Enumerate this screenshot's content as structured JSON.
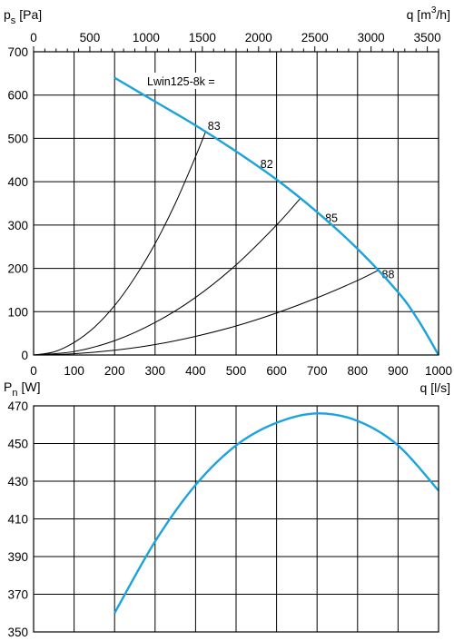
{
  "chart_data": [
    {
      "type": "line",
      "name": "pressure-chart",
      "ylabel_main": "p",
      "ylabel_sub": "s",
      "ylabel_unit": "[Pa]",
      "xlabel_top": "q [m",
      "xlabel_top_sup": "3",
      "xlabel_top_end": "/h]",
      "xlabel_bottom": "q [l/s]",
      "xlim": [
        0,
        1000
      ],
      "ylim": [
        0,
        700
      ],
      "x_ticks": [
        0,
        100,
        200,
        300,
        400,
        500,
        600,
        700,
        800,
        900,
        1000
      ],
      "x_tick_labels": [
        "0",
        "100",
        "200",
        "300",
        "400",
        "500",
        "600",
        "700",
        "800",
        "900",
        "1000"
      ],
      "y_ticks": [
        0,
        100,
        200,
        300,
        400,
        500,
        600,
        700
      ],
      "y_tick_labels": [
        "0",
        "100",
        "200",
        "300",
        "400",
        "500",
        "600",
        "700"
      ],
      "top_axis_max": 3600,
      "top_ticks": [
        0,
        500,
        1000,
        1500,
        2000,
        2500,
        3000,
        3500
      ],
      "top_tick_labels": [
        "0",
        "500",
        "1000",
        "1500",
        "2000",
        "2500",
        "3000",
        "3500"
      ],
      "grid": true,
      "fan_curve": {
        "label": "Lwin125-8k =",
        "color": "#1aa3dd",
        "x": [
          200,
          300,
          400,
          500,
          600,
          700,
          800,
          900,
          950,
          1000
        ],
        "y": [
          640,
          585,
          530,
          470,
          405,
          330,
          245,
          145,
          80,
          0
        ]
      },
      "system_curves": [
        {
          "label": "83",
          "x": [
            0,
            50,
            100,
            150,
            200,
            250,
            300,
            350,
            400,
            425
          ],
          "y": [
            0,
            7,
            29,
            64,
            114,
            179,
            257,
            350,
            458,
            516
          ],
          "label_x": 430,
          "label_y": 528
        },
        {
          "label": "82",
          "x": [
            0,
            100,
            200,
            300,
            400,
            500,
            600,
            660
          ],
          "y": [
            0,
            8,
            33,
            75,
            133,
            208,
            300,
            363
          ],
          "label_x": 560,
          "label_y": 440
        },
        {
          "label": "85",
          "x": [
            0,
            100,
            200,
            300,
            400,
            500,
            600,
            700,
            800,
            850
          ],
          "y": [
            0,
            3,
            11,
            24,
            43,
            67,
            97,
            132,
            172,
            195
          ],
          "label_x": 720,
          "label_y": 315
        },
        {
          "label": "88",
          "x": [],
          "y": [],
          "label_x": 860,
          "label_y": 185
        }
      ]
    },
    {
      "type": "line",
      "name": "power-chart",
      "ylabel_main": "P",
      "ylabel_sub": "n",
      "ylabel_unit": "[W]",
      "xlim": [
        0,
        1000
      ],
      "ylim": [
        350,
        470
      ],
      "y_ticks": [
        350,
        370,
        390,
        410,
        430,
        450,
        470
      ],
      "y_tick_labels": [
        "350",
        "370",
        "390",
        "410",
        "430",
        "450",
        "470"
      ],
      "grid": true,
      "power_curve": {
        "color": "#1aa3dd",
        "x": [
          200,
          300,
          400,
          500,
          600,
          700,
          800,
          900,
          1000
        ],
        "y": [
          360,
          398,
          428,
          449,
          461,
          466,
          462,
          449,
          425
        ]
      }
    }
  ]
}
